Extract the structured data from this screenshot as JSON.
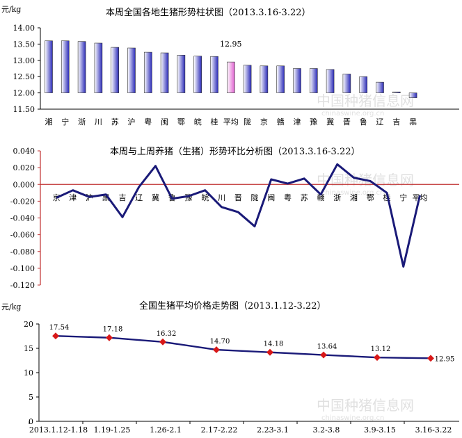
{
  "chart_data": [
    {
      "type": "bar",
      "title": "本周全国各地生猪形势柱状图（2013.3.16-3.22）",
      "ylabel": "元/kg",
      "ylim": [
        11.5,
        14.0
      ],
      "yticks": [
        "14.00",
        "13.50",
        "13.00",
        "12.50",
        "12.00",
        "11.50"
      ],
      "categories": [
        "湘",
        "宁",
        "浙",
        "川",
        "苏",
        "沪",
        "粤",
        "闽",
        "鄂",
        "皖",
        "桂",
        "平均",
        "陇",
        "京",
        "赣",
        "津",
        "豫",
        "冀",
        "晋",
        "鲁",
        "辽",
        "吉",
        "黑"
      ],
      "values": [
        13.6,
        13.6,
        13.58,
        13.53,
        13.4,
        13.38,
        13.25,
        13.23,
        13.16,
        13.13,
        13.12,
        12.95,
        12.85,
        12.83,
        12.83,
        12.75,
        12.75,
        12.72,
        12.58,
        12.5,
        12.33,
        12.03,
        11.85
      ],
      "highlight_index": 11,
      "highlight_label": "12.95",
      "colors": {
        "bar": "#2a2ab8",
        "highlight": "#e060d0"
      }
    },
    {
      "type": "line",
      "title": "本周与上周养猪（生猪）形势环比分析图（2013.3.16-3.22）",
      "ylim": [
        -0.12,
        0.04
      ],
      "yticks": [
        "0.040",
        "0.020",
        "0.000",
        "-0.020",
        "-0.040",
        "-0.060",
        "-0.080",
        "-0.100",
        "-0.120"
      ],
      "categories": [
        "京",
        "津",
        "沪",
        "黑",
        "吉",
        "辽",
        "冀",
        "鲁",
        "豫",
        "皖",
        "川",
        "晋",
        "陇",
        "闽",
        "粤",
        "苏",
        "赣",
        "浙",
        "湘",
        "鄂",
        "桂",
        "宁",
        "平均"
      ],
      "values": [
        -0.016,
        -0.007,
        -0.015,
        -0.012,
        -0.039,
        -0.003,
        0.022,
        -0.017,
        -0.014,
        -0.007,
        -0.027,
        -0.033,
        -0.05,
        0.006,
        0.001,
        0.007,
        -0.012,
        0.024,
        0.008,
        0.004,
        -0.01,
        -0.098,
        -0.013
      ],
      "colors": {
        "line": "#1a1a78",
        "zero_line": "#c03030"
      }
    },
    {
      "type": "line",
      "title": "全国生猪平均价格走势图（2013.1.12-3.22）",
      "ylabel": "元/kg",
      "ylim": [
        0,
        20
      ],
      "yticks": [
        "20",
        "15",
        "10",
        "5",
        "0"
      ],
      "categories": [
        "2013.1.12-1.18",
        "1.19-1.25",
        "1.26-2.1",
        "2.17-2.22",
        "2.23-3.1",
        "3.2-3.8",
        "3.9-3.15",
        "3.16-3.22"
      ],
      "values": [
        17.54,
        17.18,
        16.32,
        14.7,
        14.18,
        13.64,
        13.12,
        12.95
      ],
      "labels": [
        "17.54",
        "17.18",
        "16.32",
        "14.70",
        "14.18",
        "13.64",
        "13.12",
        "12.95"
      ],
      "colors": {
        "line": "#1a1a78",
        "marker": "#d81818"
      }
    }
  ],
  "watermark": {
    "cn": "中国种猪信息网",
    "en": "chinaswine.org.cn"
  }
}
